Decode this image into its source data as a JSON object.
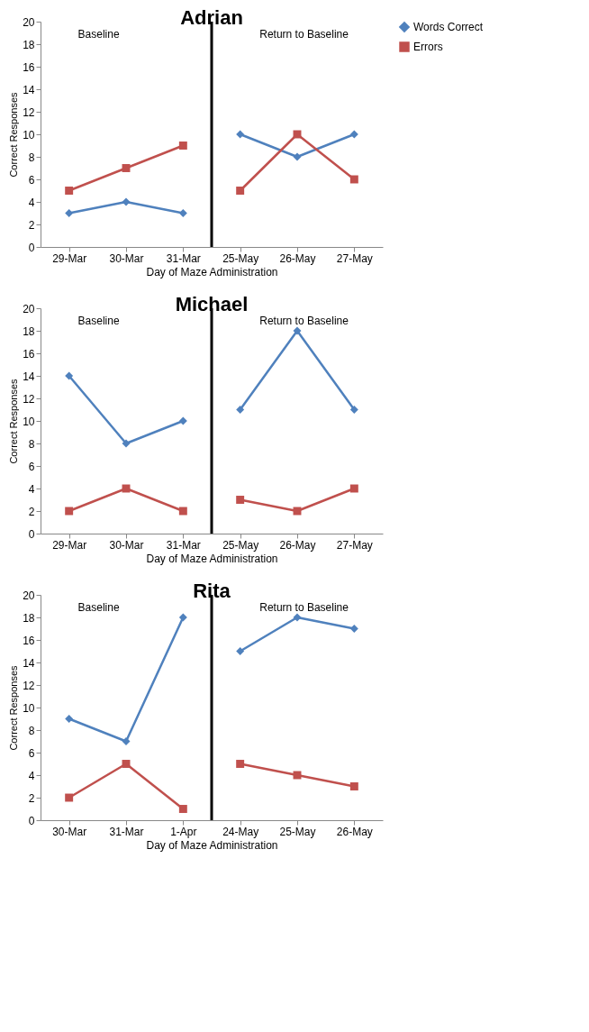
{
  "chart_data": [
    {
      "type": "line",
      "title": "Adrian",
      "xlabel": "Day of Maze Administration",
      "ylabel": "Correct Responses",
      "categories": [
        "29-Mar",
        "30-Mar",
        "31-Mar",
        "25-May",
        "26-May",
        "27-May"
      ],
      "ylim": [
        0,
        20
      ],
      "yticks": [
        0,
        2,
        4,
        6,
        8,
        10,
        12,
        14,
        16,
        18,
        20
      ],
      "grid": false,
      "legend": "right",
      "annotations": [
        "Baseline",
        "Return to Baseline"
      ],
      "series": [
        {
          "name": "Words Correct",
          "color": "#4f81bd",
          "marker": "diamond",
          "values": [
            3,
            4,
            3,
            null,
            null,
            null
          ]
        },
        {
          "color": "#4f81bd",
          "marker": "diamond",
          "values": [
            null,
            null,
            null,
            10,
            8,
            10
          ]
        },
        {
          "name": "Errors",
          "color": "#c0504d",
          "marker": "square",
          "values": [
            5,
            7,
            9,
            null,
            null,
            null
          ]
        },
        {
          "color": "#c0504d",
          "marker": "square",
          "values": [
            null,
            null,
            null,
            5,
            10,
            6
          ]
        }
      ]
    },
    {
      "type": "line",
      "title": "Michael",
      "xlabel": "Day of Maze Administration",
      "ylabel": "Correct Responses",
      "categories": [
        "29-Mar",
        "30-Mar",
        "31-Mar",
        "25-May",
        "26-May",
        "27-May"
      ],
      "ylim": [
        0,
        20
      ],
      "yticks": [
        0,
        2,
        4,
        6,
        8,
        10,
        12,
        14,
        16,
        18,
        20
      ],
      "grid": false,
      "legend": "right",
      "annotations": [
        "Baseline",
        "Return to Baseline"
      ],
      "series": [
        {
          "name": "Words Correct",
          "color": "#4f81bd",
          "marker": "diamond",
          "values": [
            14,
            8,
            10,
            null,
            null,
            null
          ]
        },
        {
          "color": "#4f81bd",
          "marker": "diamond",
          "values": [
            null,
            null,
            null,
            11,
            18,
            11
          ]
        },
        {
          "name": "Errors",
          "color": "#c0504d",
          "marker": "square",
          "values": [
            2,
            4,
            2,
            null,
            null,
            null
          ]
        },
        {
          "color": "#c0504d",
          "marker": "square",
          "values": [
            null,
            null,
            null,
            3,
            2,
            4
          ]
        }
      ]
    },
    {
      "type": "line",
      "title": "Rita",
      "xlabel": "Day of Maze Administration",
      "ylabel": "Correct Responses",
      "categories": [
        "30-Mar",
        "31-Mar",
        "1-Apr",
        "24-May",
        "25-May",
        "26-May"
      ],
      "ylim": [
        0,
        20
      ],
      "yticks": [
        0,
        2,
        4,
        6,
        8,
        10,
        12,
        14,
        16,
        18,
        20
      ],
      "grid": false,
      "legend": "right",
      "annotations": [
        "Baseline",
        "Return to Baseline"
      ],
      "series": [
        {
          "name": "Words Correct",
          "color": "#4f81bd",
          "marker": "diamond",
          "values": [
            9,
            7,
            18,
            null,
            null,
            null
          ]
        },
        {
          "color": "#4f81bd",
          "marker": "diamond",
          "values": [
            null,
            null,
            null,
            15,
            18,
            17
          ]
        },
        {
          "name": "Errors",
          "color": "#c0504d",
          "marker": "square",
          "values": [
            2,
            5,
            1,
            null,
            null,
            null
          ]
        },
        {
          "color": "#c0504d",
          "marker": "square",
          "values": [
            null,
            null,
            null,
            5,
            4,
            3
          ]
        }
      ]
    }
  ]
}
